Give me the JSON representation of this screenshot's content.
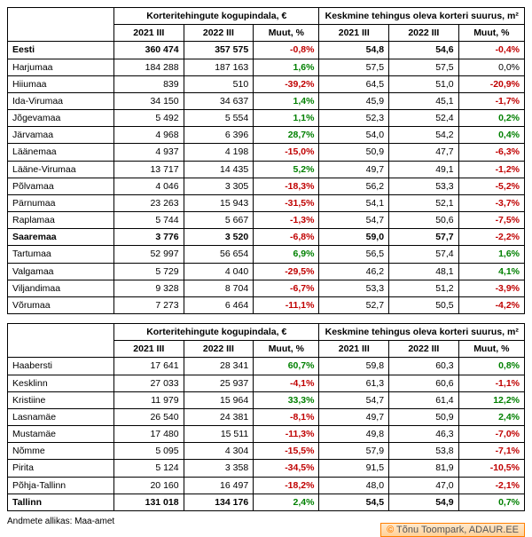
{
  "headers": {
    "group1": "Korteritehingute kogupindala, €",
    "group2": "Keskmine tehingus oleva korteri suurus, m²",
    "y1": "2021 III",
    "y2": "2022 III",
    "chg": "Muut, %"
  },
  "table1_rows": [
    {
      "label": "Eesti",
      "a": "360 474",
      "b": "357 575",
      "c": "-0,8%",
      "cs": -1,
      "d": "54,8",
      "e": "54,6",
      "f": "-0,4%",
      "fs": -1,
      "bold": true
    },
    {
      "label": "Harjumaa",
      "a": "184 288",
      "b": "187 163",
      "c": "1,6%",
      "cs": 1,
      "d": "57,5",
      "e": "57,5",
      "f": "0,0%",
      "fs": 0
    },
    {
      "label": "Hiiumaa",
      "a": "839",
      "b": "510",
      "c": "-39,2%",
      "cs": -1,
      "d": "64,5",
      "e": "51,0",
      "f": "-20,9%",
      "fs": -1
    },
    {
      "label": "Ida-Virumaa",
      "a": "34 150",
      "b": "34 637",
      "c": "1,4%",
      "cs": 1,
      "d": "45,9",
      "e": "45,1",
      "f": "-1,7%",
      "fs": -1
    },
    {
      "label": "Jõgevamaa",
      "a": "5 492",
      "b": "5 554",
      "c": "1,1%",
      "cs": 1,
      "d": "52,3",
      "e": "52,4",
      "f": "0,2%",
      "fs": 1
    },
    {
      "label": "Järvamaa",
      "a": "4 968",
      "b": "6 396",
      "c": "28,7%",
      "cs": 1,
      "d": "54,0",
      "e": "54,2",
      "f": "0,4%",
      "fs": 1
    },
    {
      "label": "Läänemaa",
      "a": "4 937",
      "b": "4 198",
      "c": "-15,0%",
      "cs": -1,
      "d": "50,9",
      "e": "47,7",
      "f": "-6,3%",
      "fs": -1
    },
    {
      "label": "Lääne-Virumaa",
      "a": "13 717",
      "b": "14 435",
      "c": "5,2%",
      "cs": 1,
      "d": "49,7",
      "e": "49,1",
      "f": "-1,2%",
      "fs": -1
    },
    {
      "label": "Põlvamaa",
      "a": "4 046",
      "b": "3 305",
      "c": "-18,3%",
      "cs": -1,
      "d": "56,2",
      "e": "53,3",
      "f": "-5,2%",
      "fs": -1
    },
    {
      "label": "Pärnumaa",
      "a": "23 263",
      "b": "15 943",
      "c": "-31,5%",
      "cs": -1,
      "d": "54,1",
      "e": "52,1",
      "f": "-3,7%",
      "fs": -1
    },
    {
      "label": "Raplamaa",
      "a": "5 744",
      "b": "5 667",
      "c": "-1,3%",
      "cs": -1,
      "d": "54,7",
      "e": "50,6",
      "f": "-7,5%",
      "fs": -1
    },
    {
      "label": "Saaremaa",
      "a": "3 776",
      "b": "3 520",
      "c": "-6,8%",
      "cs": -1,
      "d": "59,0",
      "e": "57,7",
      "f": "-2,2%",
      "fs": -1,
      "bold": true
    },
    {
      "label": "Tartumaa",
      "a": "52 997",
      "b": "56 654",
      "c": "6,9%",
      "cs": 1,
      "d": "56,5",
      "e": "57,4",
      "f": "1,6%",
      "fs": 1
    },
    {
      "label": "Valgamaa",
      "a": "5 729",
      "b": "4 040",
      "c": "-29,5%",
      "cs": -1,
      "d": "46,2",
      "e": "48,1",
      "f": "4,1%",
      "fs": 1
    },
    {
      "label": "Viljandimaa",
      "a": "9 328",
      "b": "8 704",
      "c": "-6,7%",
      "cs": -1,
      "d": "53,3",
      "e": "51,2",
      "f": "-3,9%",
      "fs": -1
    },
    {
      "label": "Võrumaa",
      "a": "7 273",
      "b": "6 464",
      "c": "-11,1%",
      "cs": -1,
      "d": "52,7",
      "e": "50,5",
      "f": "-4,2%",
      "fs": -1
    }
  ],
  "table2_rows": [
    {
      "label": "Haabersti",
      "a": "17 641",
      "b": "28 341",
      "c": "60,7%",
      "cs": 1,
      "d": "59,8",
      "e": "60,3",
      "f": "0,8%",
      "fs": 1
    },
    {
      "label": "Kesklinn",
      "a": "27 033",
      "b": "25 937",
      "c": "-4,1%",
      "cs": -1,
      "d": "61,3",
      "e": "60,6",
      "f": "-1,1%",
      "fs": -1
    },
    {
      "label": "Kristiine",
      "a": "11 979",
      "b": "15 964",
      "c": "33,3%",
      "cs": 1,
      "d": "54,7",
      "e": "61,4",
      "f": "12,2%",
      "fs": 1
    },
    {
      "label": "Lasnamäe",
      "a": "26 540",
      "b": "24 381",
      "c": "-8,1%",
      "cs": -1,
      "d": "49,7",
      "e": "50,9",
      "f": "2,4%",
      "fs": 1
    },
    {
      "label": "Mustamäe",
      "a": "17 480",
      "b": "15 511",
      "c": "-11,3%",
      "cs": -1,
      "d": "49,8",
      "e": "46,3",
      "f": "-7,0%",
      "fs": -1
    },
    {
      "label": "Nõmme",
      "a": "5 095",
      "b": "4 304",
      "c": "-15,5%",
      "cs": -1,
      "d": "57,9",
      "e": "53,8",
      "f": "-7,1%",
      "fs": -1
    },
    {
      "label": "Pirita",
      "a": "5 124",
      "b": "3 358",
      "c": "-34,5%",
      "cs": -1,
      "d": "91,5",
      "e": "81,9",
      "f": "-10,5%",
      "fs": -1
    },
    {
      "label": "Põhja-Tallinn",
      "a": "20 160",
      "b": "16 497",
      "c": "-18,2%",
      "cs": -1,
      "d": "48,0",
      "e": "47,0",
      "f": "-2,1%",
      "fs": -1
    },
    {
      "label": "Tallinn",
      "a": "131 018",
      "b": "134 176",
      "c": "2,4%",
      "cs": 1,
      "d": "54,5",
      "e": "54,9",
      "f": "0,7%",
      "fs": 1,
      "bold": true
    }
  ],
  "source": "Andmete allikas: Maa-amet",
  "credit": {
    "cc": "©",
    "text": "Tõnu Toompark, ADAUR.EE"
  }
}
